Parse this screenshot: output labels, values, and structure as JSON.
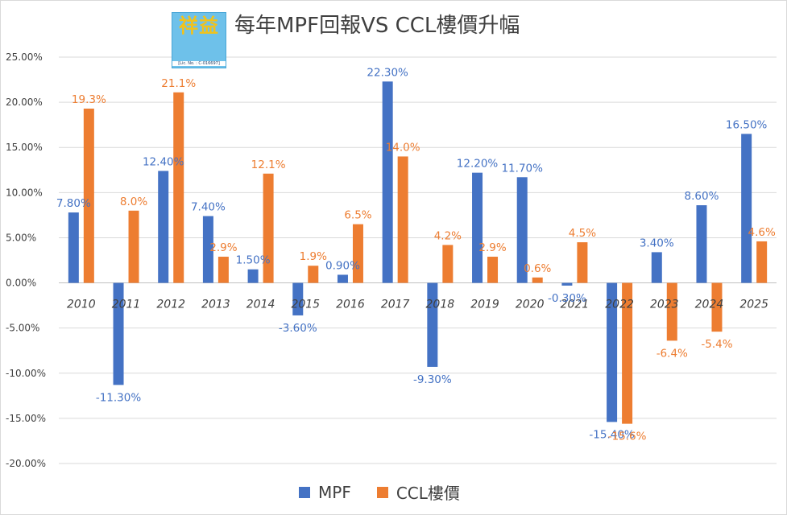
{
  "chart_data": {
    "type": "bar",
    "title": "每年MPF回報VS CCL樓價升幅",
    "categories": [
      "2010",
      "2011",
      "2012",
      "2013",
      "2014",
      "2015",
      "2016",
      "2017",
      "2018",
      "2019",
      "2020",
      "2021",
      "2022",
      "2023",
      "2024",
      "2025"
    ],
    "series": [
      {
        "name": "MPF",
        "color": "#4472c4",
        "values": [
          7.8,
          -11.3,
          12.4,
          7.4,
          1.5,
          -3.6,
          0.9,
          22.3,
          -9.3,
          12.2,
          11.7,
          -0.3,
          -15.4,
          3.4,
          8.6,
          16.5
        ],
        "labels": [
          "7.80%",
          "-11.30%",
          "12.40%",
          "7.40%",
          "1.50%",
          "-3.60%",
          "0.90%",
          "22.30%",
          "-9.30%",
          "12.20%",
          "11.70%",
          "-0.30%",
          "-15.40%",
          "3.40%",
          "8.60%",
          "16.50%"
        ]
      },
      {
        "name": "CCL樓價",
        "color": "#ed7d31",
        "values": [
          19.3,
          8.0,
          21.1,
          2.9,
          12.1,
          1.9,
          6.5,
          14.0,
          4.2,
          2.9,
          0.6,
          4.5,
          -15.6,
          -6.4,
          -5.4,
          4.6
        ],
        "labels": [
          "19.3%",
          "8.0%",
          "21.1%",
          "2.9%",
          "12.1%",
          "1.9%",
          "6.5%",
          "14.0%",
          "4.2%",
          "2.9%",
          "0.6%",
          "4.5%",
          "-15.6%",
          "-6.4%",
          "-5.4%",
          "4.6%"
        ]
      }
    ],
    "ylim": [
      -20,
      25
    ],
    "yticks": [
      25,
      20,
      15,
      10,
      5,
      0,
      -5,
      -10,
      -15,
      -20
    ],
    "yticklabels": [
      "25.00%",
      "20.00%",
      "15.00%",
      "10.00%",
      "5.00%",
      "0.00%",
      "-5.00%",
      "-10.00%",
      "-15.00%",
      "-20.00%"
    ],
    "xlabel": "",
    "ylabel": "",
    "grid": true,
    "legend": "bottom-center"
  },
  "logo": {
    "chars": "祥益",
    "license": "[Lic. No. : C-016697]"
  }
}
